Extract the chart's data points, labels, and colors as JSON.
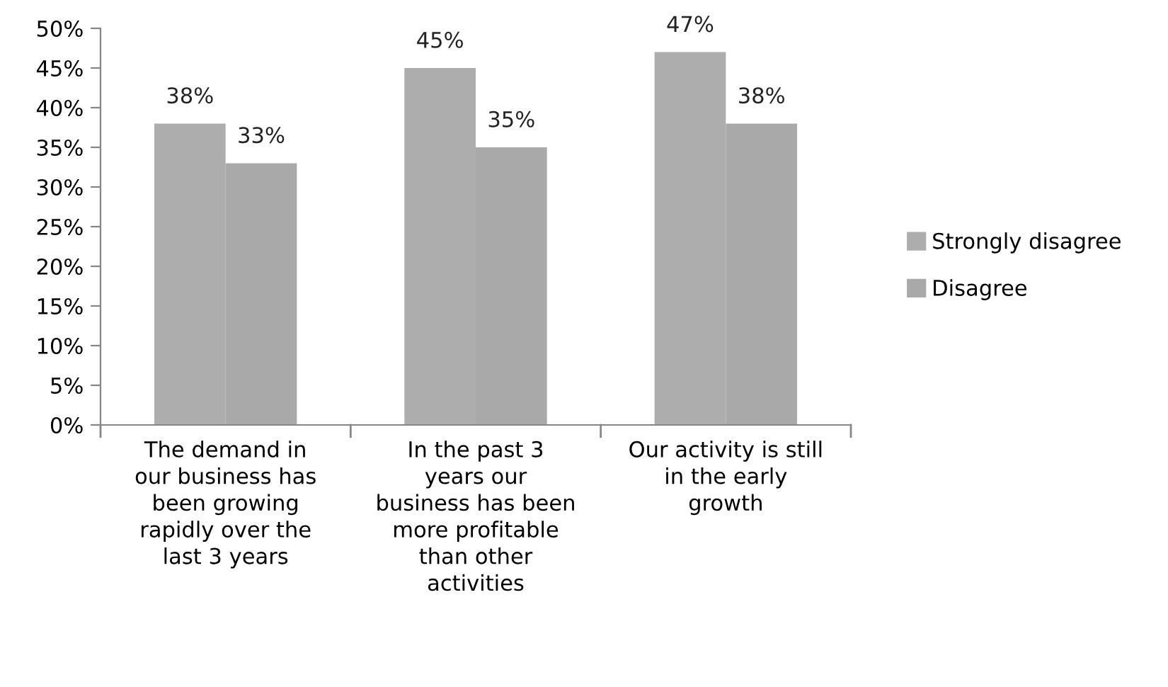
{
  "chart_data": {
    "type": "bar",
    "categories": [
      "The demand in\nour business has\nbeen growing\nrapidly over the\nlast 3 years",
      "In the past 3\nyears our\nbusiness has been\nmore profitable\nthan other\nactivities",
      "Our activity is still\nin the early\ngrowth"
    ],
    "series": [
      {
        "name": "Strongly disagree",
        "color": "#adadad",
        "values": [
          38,
          45,
          47
        ],
        "value_labels": [
          "38%",
          "45%",
          "47%"
        ]
      },
      {
        "name": "Disagree",
        "color": "#a9a9a9",
        "values": [
          33,
          35,
          38
        ],
        "value_labels": [
          "33%",
          "35%",
          "38%"
        ]
      }
    ],
    "ylim": [
      0,
      50
    ],
    "yticks": [
      {
        "value": 0,
        "label": "0%"
      },
      {
        "value": 5,
        "label": "5%"
      },
      {
        "value": 10,
        "label": "10%"
      },
      {
        "value": 15,
        "label": "15%"
      },
      {
        "value": 20,
        "label": "20%"
      },
      {
        "value": 25,
        "label": "25%"
      },
      {
        "value": 30,
        "label": "30%"
      },
      {
        "value": 35,
        "label": "35%"
      },
      {
        "value": 40,
        "label": "40%"
      },
      {
        "value": 45,
        "label": "45%"
      },
      {
        "value": 50,
        "label": "50%"
      }
    ],
    "legend": "right"
  }
}
